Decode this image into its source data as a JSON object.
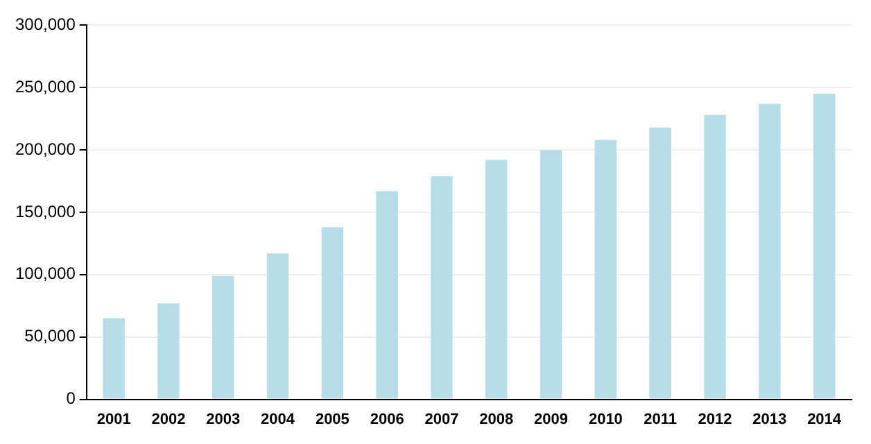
{
  "chart_data": {
    "type": "bar",
    "categories": [
      "2001",
      "2002",
      "2003",
      "2004",
      "2005",
      "2006",
      "2007",
      "2008",
      "2009",
      "2010",
      "2011",
      "2012",
      "2013",
      "2014"
    ],
    "values": [
      65000,
      77000,
      99000,
      117000,
      138000,
      167000,
      179000,
      192000,
      200000,
      208000,
      218000,
      228000,
      237000,
      245000
    ],
    "color": "#b7dde8",
    "ylim": [
      0,
      300000
    ],
    "yticks": [
      {
        "value": 0,
        "label": "0"
      },
      {
        "value": 50000,
        "label": "50,000"
      },
      {
        "value": 100000,
        "label": "100,000"
      },
      {
        "value": 150000,
        "label": "150,000"
      },
      {
        "value": 200000,
        "label": "200,000"
      },
      {
        "value": 250000,
        "label": "250,000"
      },
      {
        "value": 300000,
        "label": "300,000"
      }
    ],
    "grid": "y",
    "legend": false
  }
}
